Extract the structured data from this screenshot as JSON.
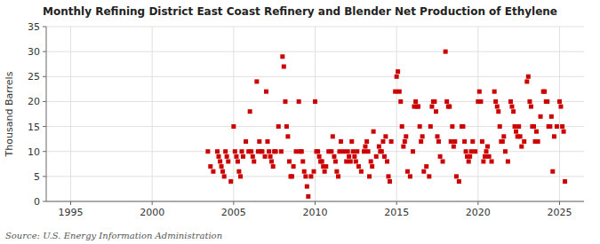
{
  "chart_data": {
    "type": "scatter",
    "title": "Monthly Refining District East Coast Refinery and Blender Net Production of Ethylene",
    "ylabel": "Thousand Barrels",
    "annotations": [
      "Source: U.S. Energy Information Administration"
    ],
    "color": "#cc0000",
    "marker": "square",
    "grid": true,
    "xlim": [
      1993.5,
      2026.5
    ],
    "ylim": [
      0,
      35
    ],
    "xticks": [
      1995,
      2000,
      2005,
      2010,
      2015,
      2020,
      2025
    ],
    "yticks": [
      0,
      5,
      10,
      15,
      20,
      25,
      30,
      35
    ],
    "x": [
      2003.42,
      2003.58,
      2003.75,
      2004.0,
      2004.08,
      2004.17,
      2004.25,
      2004.33,
      2004.42,
      2004.5,
      2004.58,
      2004.67,
      2004.83,
      2005.0,
      2005.08,
      2005.17,
      2005.25,
      2005.33,
      2005.42,
      2005.5,
      2005.58,
      2005.75,
      2005.92,
      2006.0,
      2006.08,
      2006.17,
      2006.25,
      2006.42,
      2006.5,
      2006.58,
      2006.67,
      2006.75,
      2006.92,
      2007.0,
      2007.08,
      2007.17,
      2007.25,
      2007.33,
      2007.42,
      2007.5,
      2007.58,
      2007.75,
      2007.92,
      2008.0,
      2008.08,
      2008.17,
      2008.25,
      2008.33,
      2008.42,
      2008.5,
      2008.58,
      2008.67,
      2008.83,
      2009.0,
      2009.08,
      2009.17,
      2009.25,
      2009.33,
      2009.42,
      2009.5,
      2009.58,
      2009.75,
      2009.92,
      2010.0,
      2010.08,
      2010.17,
      2010.25,
      2010.33,
      2010.42,
      2010.5,
      2010.58,
      2010.67,
      2010.83,
      2011.0,
      2011.08,
      2011.17,
      2011.25,
      2011.33,
      2011.42,
      2011.5,
      2011.58,
      2011.75,
      2011.92,
      2012.0,
      2012.08,
      2012.17,
      2012.25,
      2012.33,
      2012.42,
      2012.5,
      2012.58,
      2012.67,
      2012.83,
      2013.0,
      2013.08,
      2013.17,
      2013.25,
      2013.33,
      2013.42,
      2013.5,
      2013.58,
      2013.75,
      2013.92,
      2014.0,
      2014.08,
      2014.17,
      2014.25,
      2014.33,
      2014.42,
      2014.5,
      2014.58,
      2014.67,
      2014.92,
      2015.0,
      2015.08,
      2015.17,
      2015.25,
      2015.33,
      2015.42,
      2015.5,
      2015.58,
      2015.67,
      2015.83,
      2016.0,
      2016.08,
      2016.17,
      2016.25,
      2016.33,
      2016.42,
      2016.5,
      2016.58,
      2016.67,
      2016.83,
      2017.0,
      2017.08,
      2017.17,
      2017.25,
      2017.33,
      2017.42,
      2017.5,
      2017.58,
      2017.67,
      2017.83,
      2018.0,
      2018.08,
      2018.17,
      2018.25,
      2018.33,
      2018.42,
      2018.5,
      2018.58,
      2018.67,
      2018.83,
      2019.0,
      2019.08,
      2019.17,
      2019.25,
      2019.33,
      2019.42,
      2019.5,
      2019.58,
      2019.67,
      2019.83,
      2020.0,
      2020.08,
      2020.17,
      2020.25,
      2020.33,
      2020.42,
      2020.5,
      2020.58,
      2020.67,
      2020.83,
      2021.0,
      2021.08,
      2021.17,
      2021.25,
      2021.33,
      2021.42,
      2021.5,
      2021.58,
      2021.67,
      2021.83,
      2022.0,
      2022.08,
      2022.17,
      2022.25,
      2022.33,
      2022.42,
      2022.5,
      2022.58,
      2022.67,
      2022.83,
      2023.0,
      2023.08,
      2023.17,
      2023.25,
      2023.33,
      2023.42,
      2023.5,
      2023.58,
      2023.67,
      2023.83,
      2024.0,
      2024.08,
      2024.17,
      2024.25,
      2024.33,
      2024.42,
      2024.5,
      2024.58,
      2024.67,
      2024.83,
      2025.0,
      2025.08,
      2025.17,
      2025.25,
      2025.33
    ],
    "values": [
      10,
      7,
      6,
      10,
      9,
      8,
      7,
      6,
      5,
      10,
      9,
      8,
      4,
      15,
      10,
      9,
      8,
      6,
      5,
      10,
      9,
      12,
      10,
      18,
      10,
      9,
      8,
      24,
      10,
      12,
      10,
      10,
      9,
      22,
      12,
      10,
      9,
      8,
      7,
      10,
      10,
      15,
      10,
      29,
      27,
      20,
      15,
      13,
      8,
      5,
      5,
      7,
      10,
      20,
      10,
      10,
      8,
      6,
      5,
      3,
      1,
      5,
      6,
      20,
      10,
      10,
      9,
      8,
      8,
      7,
      6,
      7,
      10,
      10,
      13,
      9,
      8,
      6,
      5,
      10,
      12,
      10,
      8,
      10,
      9,
      8,
      12,
      10,
      9,
      8,
      10,
      7,
      6,
      10,
      11,
      12,
      10,
      5,
      8,
      7,
      14,
      9,
      11,
      10,
      10,
      12,
      9,
      13,
      8,
      5,
      4,
      12,
      22,
      25,
      26,
      22,
      20,
      15,
      11,
      12,
      13,
      6,
      5,
      10,
      19,
      20,
      19,
      19,
      15,
      12,
      13,
      6,
      7,
      5,
      15,
      19,
      20,
      20,
      18,
      13,
      12,
      9,
      8,
      30,
      20,
      19,
      19,
      12,
      15,
      11,
      12,
      5,
      4,
      15,
      15,
      12,
      10,
      9,
      8,
      9,
      10,
      12,
      10,
      20,
      22,
      20,
      12,
      8,
      9,
      10,
      11,
      9,
      8,
      22,
      20,
      19,
      18,
      15,
      12,
      12,
      13,
      10,
      8,
      20,
      19,
      18,
      15,
      14,
      13,
      15,
      13,
      11,
      12,
      24,
      25,
      20,
      19,
      15,
      15,
      12,
      14,
      12,
      17,
      22,
      22,
      20,
      20,
      15,
      15,
      17,
      6,
      13,
      15,
      20,
      19,
      15,
      14,
      4
    ]
  }
}
